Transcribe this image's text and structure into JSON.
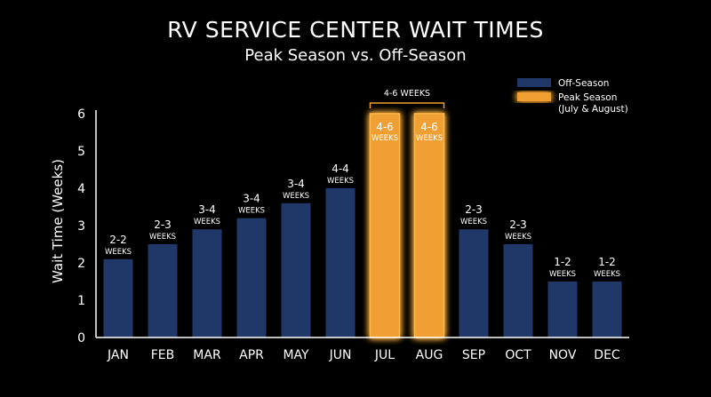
{
  "chart_data": {
    "type": "bar",
    "title": "RV SERVICE CENTER WAIT TIMES",
    "subtitle": "Peak Season vs. Off-Season",
    "ylabel": "Wait Time (Weeks)",
    "xlabel": "",
    "ylim": [
      0,
      6
    ],
    "yticks": [
      "0",
      "1",
      "2",
      "3",
      "4",
      "5",
      "6"
    ],
    "grid": false,
    "legend_position": "top-right",
    "categories": [
      "JAN",
      "FEB",
      "MAR",
      "APR",
      "MAY",
      "JUN",
      "JUL",
      "AUG",
      "SEP",
      "OCT",
      "NOV",
      "DEC"
    ],
    "values": [
      2.1,
      2.5,
      2.9,
      3.2,
      3.6,
      4.0,
      6.0,
      6.0,
      2.9,
      2.5,
      1.5,
      1.5
    ],
    "labels": [
      {
        "range": "2-2",
        "unit": "WEEKS"
      },
      {
        "range": "2-3",
        "unit": "WEEKS"
      },
      {
        "range": "3-4",
        "unit": "WEEKS"
      },
      {
        "range": "3-4",
        "unit": "WEEKS"
      },
      {
        "range": "3-4",
        "unit": "WEEKS"
      },
      {
        "range": "4-4",
        "unit": "WEEKS"
      },
      {
        "range": "4-6",
        "unit": "WEEKS"
      },
      {
        "range": "4-6",
        "unit": "WEEKS"
      },
      {
        "range": "2-3",
        "unit": "WEEKS"
      },
      {
        "range": "2-3",
        "unit": "WEEKS"
      },
      {
        "range": "1-2",
        "unit": "WEEKS"
      },
      {
        "range": "1-2",
        "unit": "WEEKS"
      }
    ],
    "season": [
      "off",
      "off",
      "off",
      "off",
      "off",
      "off",
      "peak",
      "peak",
      "off",
      "off",
      "off",
      "off"
    ],
    "legend": [
      {
        "key": "off",
        "name": "Off-Season",
        "subname": ""
      },
      {
        "key": "peak",
        "name": "Peak Season",
        "subname": "(July & August)"
      }
    ],
    "annotations": [
      {
        "text": "4-6 WEEKS",
        "spans": [
          "JUL",
          "AUG"
        ]
      }
    ],
    "colors": {
      "off": "#1f3868",
      "peak": "#f0a030",
      "peak_glow": "#ffb84a",
      "axis": "#ffffff",
      "background": "#000000"
    }
  }
}
